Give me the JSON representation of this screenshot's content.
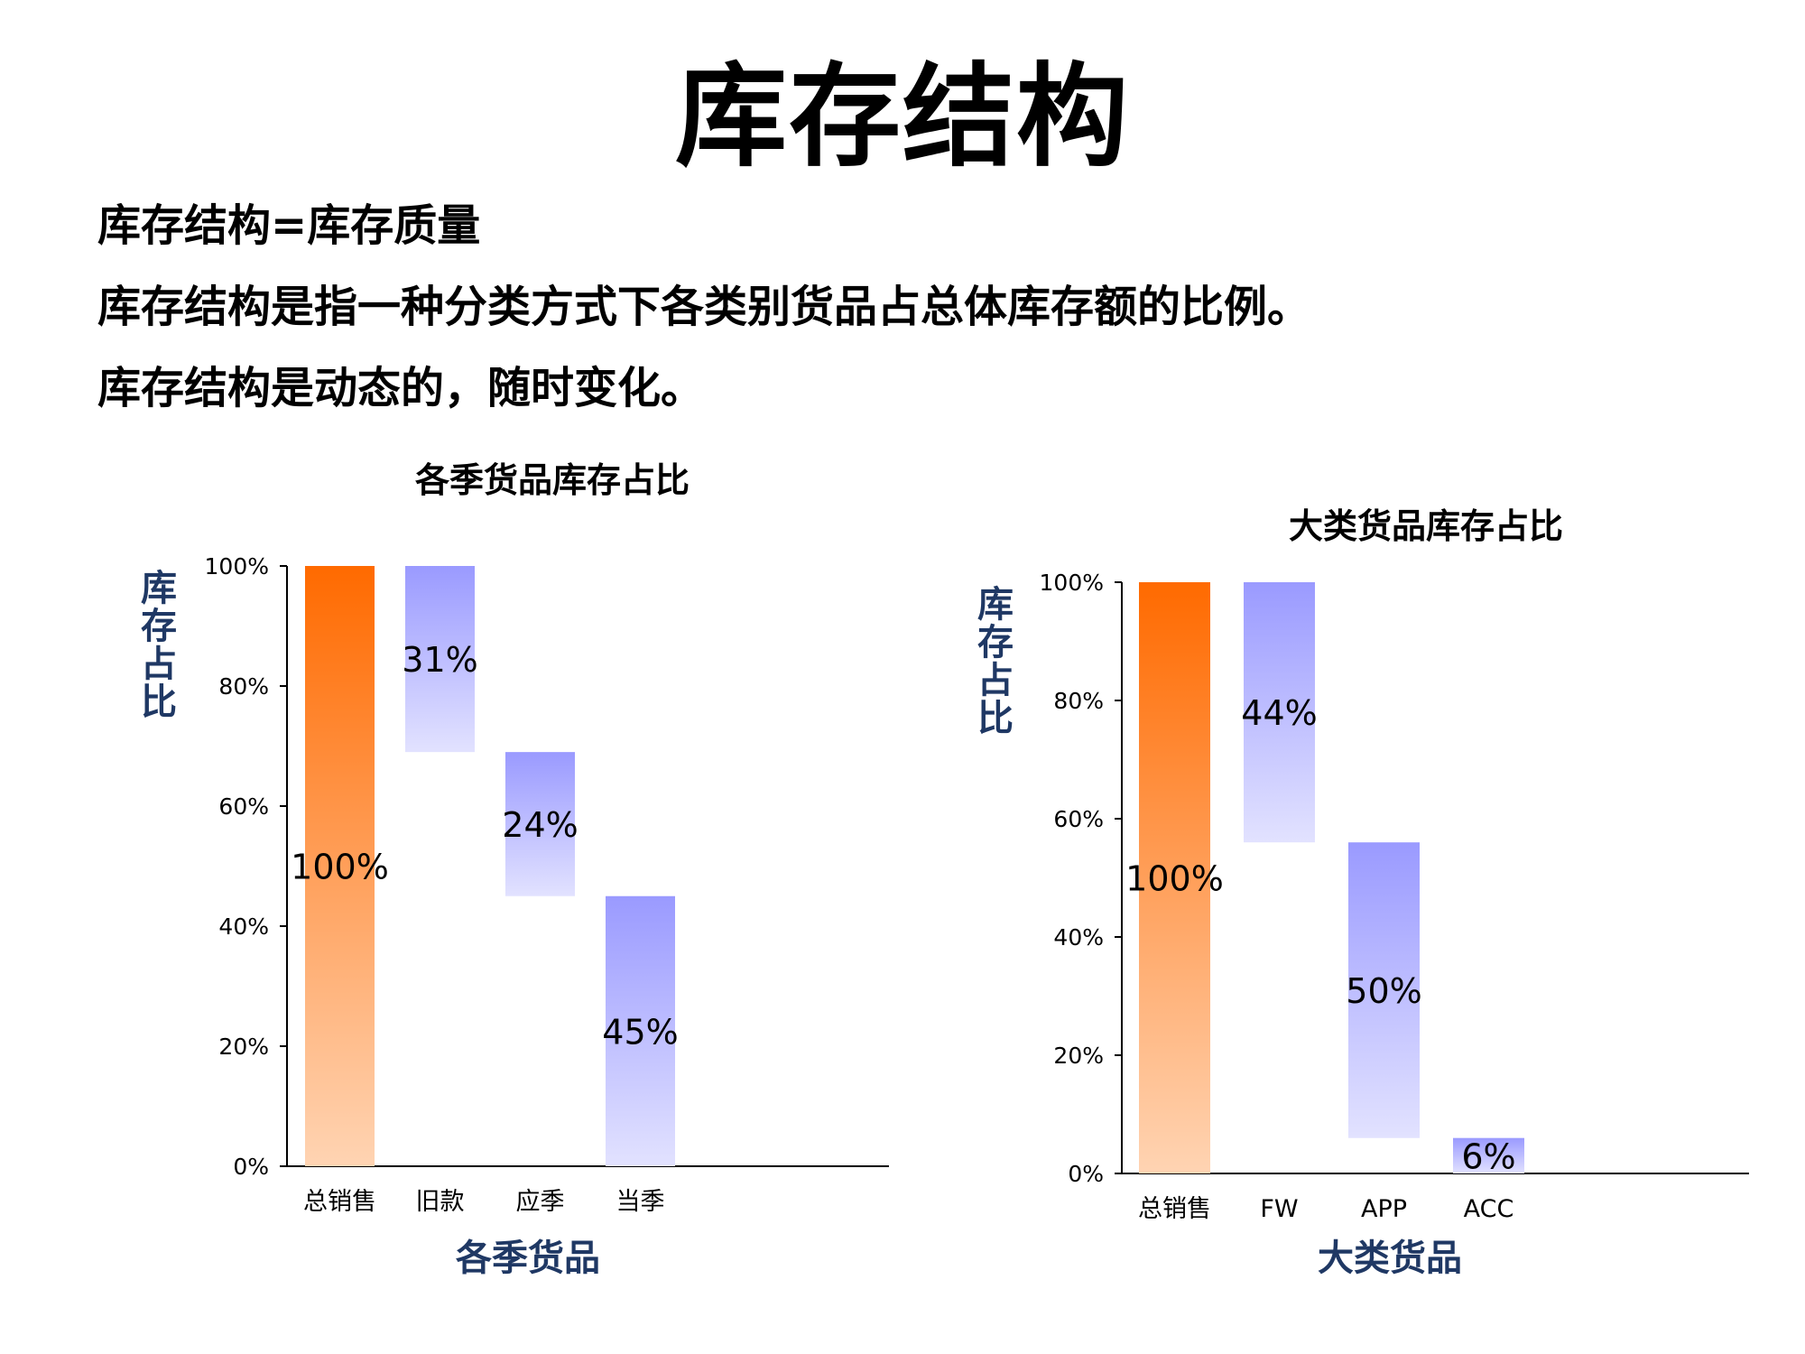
{
  "title": "库存结构",
  "lines": [
    "库存结构=库存质量",
    "库存结构是指一种分类方式下各类别货品占总体库存额的比例。",
    "库存结构是动态的，随时变化。"
  ],
  "colors": {
    "total_top": "#ff6a00",
    "total_bottom": "#ffd4b3",
    "part_top": "#9a9aff",
    "part_bottom": "#e2e2ff",
    "axis_title": "#1f3864"
  },
  "chart_data": [
    {
      "type": "bar",
      "subtype": "waterfall",
      "title": "各季货品库存占比",
      "xlabel": "各季货品",
      "ylabel": "库存占比",
      "ylim": [
        0,
        100
      ],
      "yticks": [
        "0%",
        "20%",
        "40%",
        "60%",
        "80%",
        "100%"
      ],
      "categories": [
        "总销售",
        "旧款",
        "应季",
        "当季"
      ],
      "values": [
        100,
        31,
        24,
        45
      ],
      "data_labels": [
        "100%",
        "31%",
        "24%",
        "45%"
      ]
    },
    {
      "type": "bar",
      "subtype": "waterfall",
      "title": "大类货品库存占比",
      "xlabel": "大类货品",
      "ylabel": "库存占比",
      "ylim": [
        0,
        100
      ],
      "yticks": [
        "0%",
        "20%",
        "40%",
        "60%",
        "80%",
        "100%"
      ],
      "categories": [
        "总销售",
        "FW",
        "APP",
        "ACC"
      ],
      "values": [
        100,
        44,
        50,
        6
      ],
      "data_labels": [
        "100%",
        "44%",
        "50%",
        "6%"
      ]
    }
  ]
}
